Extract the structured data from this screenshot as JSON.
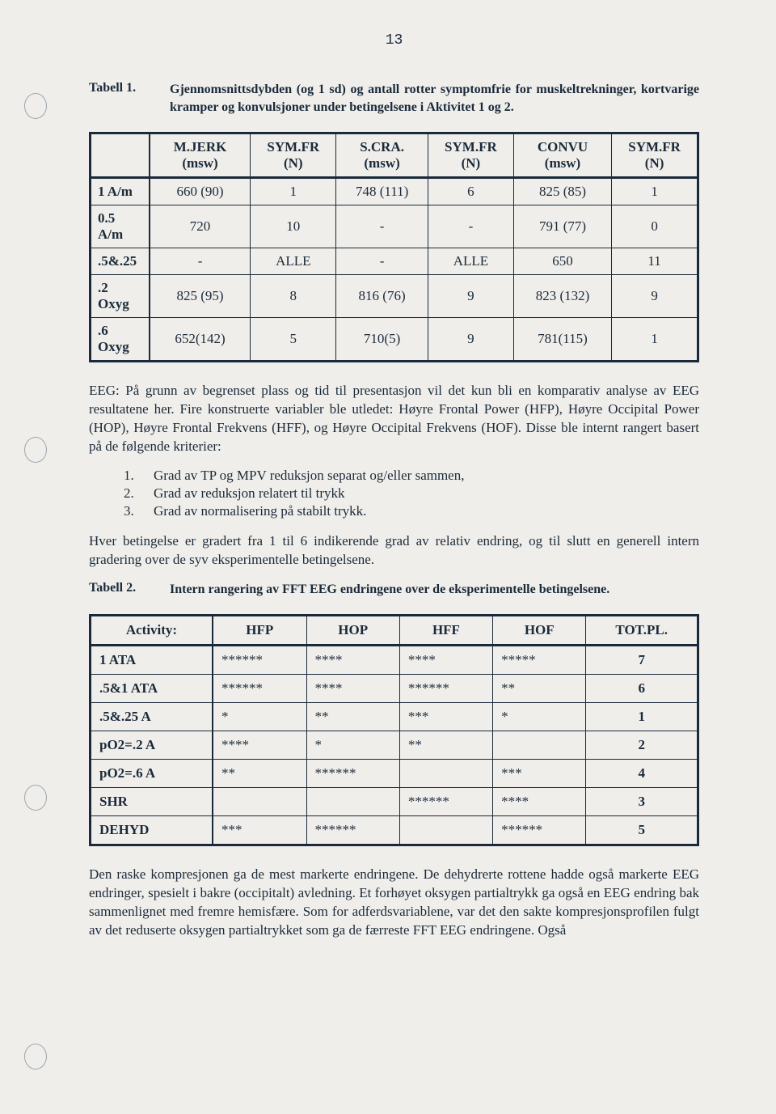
{
  "page_number": "13",
  "tabell1": {
    "label": "Tabell 1.",
    "caption": "Gjennomsnittsdybden (og 1 sd) og antall rotter symptomfrie for muskeltrekninger, kortvarige kramper og konvulsjoner under betingelsene i Aktivitet 1 og 2.",
    "headers": [
      "",
      "M.JERK (msw)",
      "SYM.FR (N)",
      "S.CRA. (msw)",
      "SYM.FR (N)",
      "CONVU (msw)",
      "SYM.FR (N)"
    ],
    "rows": [
      [
        "1 A/m",
        "660 (90)",
        "1",
        "748 (111)",
        "6",
        "825 (85)",
        "1"
      ],
      [
        "0.5 A/m",
        "720",
        "10",
        "-",
        "-",
        "791 (77)",
        "0"
      ],
      [
        ".5&.25",
        "-",
        "ALLE",
        "-",
        "ALLE",
        "650",
        "11"
      ],
      [
        ".2 Oxyg",
        "825 (95)",
        "8",
        "816 (76)",
        "9",
        "823 (132)",
        "9"
      ],
      [
        ".6 Oxyg",
        "652(142)",
        "5",
        "710(5)",
        "9",
        "781(115)",
        "1"
      ]
    ]
  },
  "eeg_para": "EEG: På grunn av begrenset plass og tid til presentasjon vil det kun bli en komparativ analyse av EEG resultatene her. Fire konstruerte variabler ble utledet: Høyre Frontal Power (HFP), Høyre Occipital Power (HOP), Høyre Frontal Frekvens (HFF), og Høyre Occipital Frekvens (HOF). Disse ble internt rangert basert på de følgende kriterier:",
  "criteria": [
    "Grad av TP og MPV reduksjon separat og/eller sammen,",
    "Grad av reduksjon relatert til trykk",
    "Grad av normalisering på stabilt trykk."
  ],
  "grading_para": "Hver betingelse er gradert fra 1 til 6 indikerende grad av relativ endring, og til slutt en generell intern gradering over de syv eksperimentelle betingelsene.",
  "tabell2": {
    "label": "Tabell 2.",
    "caption": "Intern rangering av FFT EEG endringene over de eksperimentelle betingelsene.",
    "headers": [
      "Activity:",
      "HFP",
      "HOP",
      "HFF",
      "HOF",
      "TOT.PL."
    ],
    "rows": [
      [
        "1 ATA",
        "******",
        "****",
        "****",
        "*****",
        "7"
      ],
      [
        ".5&1 ATA",
        "******",
        "****",
        "******",
        "**",
        "6"
      ],
      [
        ".5&.25 A",
        "*",
        "**",
        "***",
        "*",
        "1"
      ],
      [
        "pO2=.2 A",
        "****",
        "*",
        "**",
        "",
        "2"
      ],
      [
        "pO2=.6 A",
        "**",
        "******",
        "",
        "***",
        "4"
      ],
      [
        "SHR",
        "",
        "",
        "******",
        "****",
        "3"
      ],
      [
        "DEHYD",
        "***",
        "******",
        "",
        "******",
        "5"
      ]
    ]
  },
  "final_para": "Den raske kompresjonen ga de mest markerte endringene. De dehydrerte rottene hadde også markerte EEG endringer, spesielt i bakre (occipitalt) avledning. Et forhøyet oksygen partialtrykk ga også en EEG endring bak sammenlignet med fremre hemisfære. Som for adferdsvariablene, var det den sakte kompresjonsprofilen fulgt av det reduserte oksygen partialtrykket som ga de færreste FFT EEG endringene. Også"
}
